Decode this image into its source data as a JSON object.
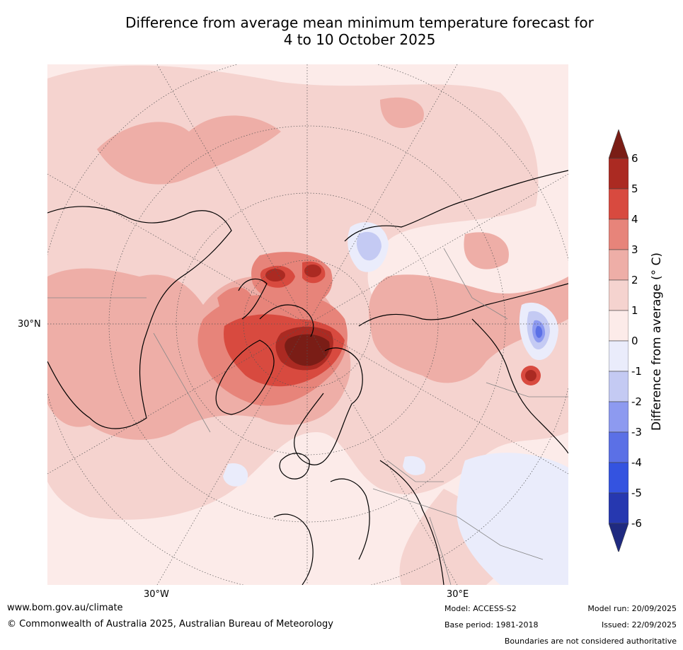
{
  "title": {
    "line1": "Difference from average mean minimum temperature forecast for",
    "line2": "4 to 10 October 2025"
  },
  "map": {
    "projection": "north polar stereographic",
    "region": "Northern Hemisphere",
    "grid_labels": {
      "lat_30n": "30°N",
      "lon_30w": "30°W",
      "lon_30e": "30°E"
    }
  },
  "legend": {
    "label": "Difference from average (° C)",
    "ticks": [
      "6",
      "5",
      "4",
      "3",
      "2",
      "1",
      "0",
      "-1",
      "-2",
      "-3",
      "-4",
      "-5",
      "-6"
    ],
    "bins": [
      {
        "range": "> 6",
        "color": "#7a1d16"
      },
      {
        "range": "5 to 6",
        "color": "#ab2a22"
      },
      {
        "range": "4 to 5",
        "color": "#d84a3f"
      },
      {
        "range": "3 to 4",
        "color": "#e7847a"
      },
      {
        "range": "2 to 3",
        "color": "#eeaea7"
      },
      {
        "range": "1 to 2",
        "color": "#f5d3cf"
      },
      {
        "range": "0 to 1",
        "color": "#fcebe9"
      },
      {
        "range": "-1 to 0",
        "color": "#eaecfb"
      },
      {
        "range": "-2 to -1",
        "color": "#c4caf3"
      },
      {
        "range": "-3 to -2",
        "color": "#8d9af0"
      },
      {
        "range": "-4 to -3",
        "color": "#5b70e6"
      },
      {
        "range": "-5 to -4",
        "color": "#3453e0"
      },
      {
        "range": "-6 to -5",
        "color": "#2638b0"
      },
      {
        "range": "< -6",
        "color": "#1f2a80"
      }
    ]
  },
  "footer": {
    "url": "www.bom.gov.au/climate",
    "copyright": "© Commonwealth of Australia 2025, Australian Bureau of Meteorology",
    "model": "Model: ACCESS-S2",
    "base_period": "Base period: 1981-2018",
    "model_run": "Model run: 20/09/2025",
    "issued": "Issued: 22/09/2025",
    "disclaimer": "Boundaries are not considered authoritative"
  }
}
